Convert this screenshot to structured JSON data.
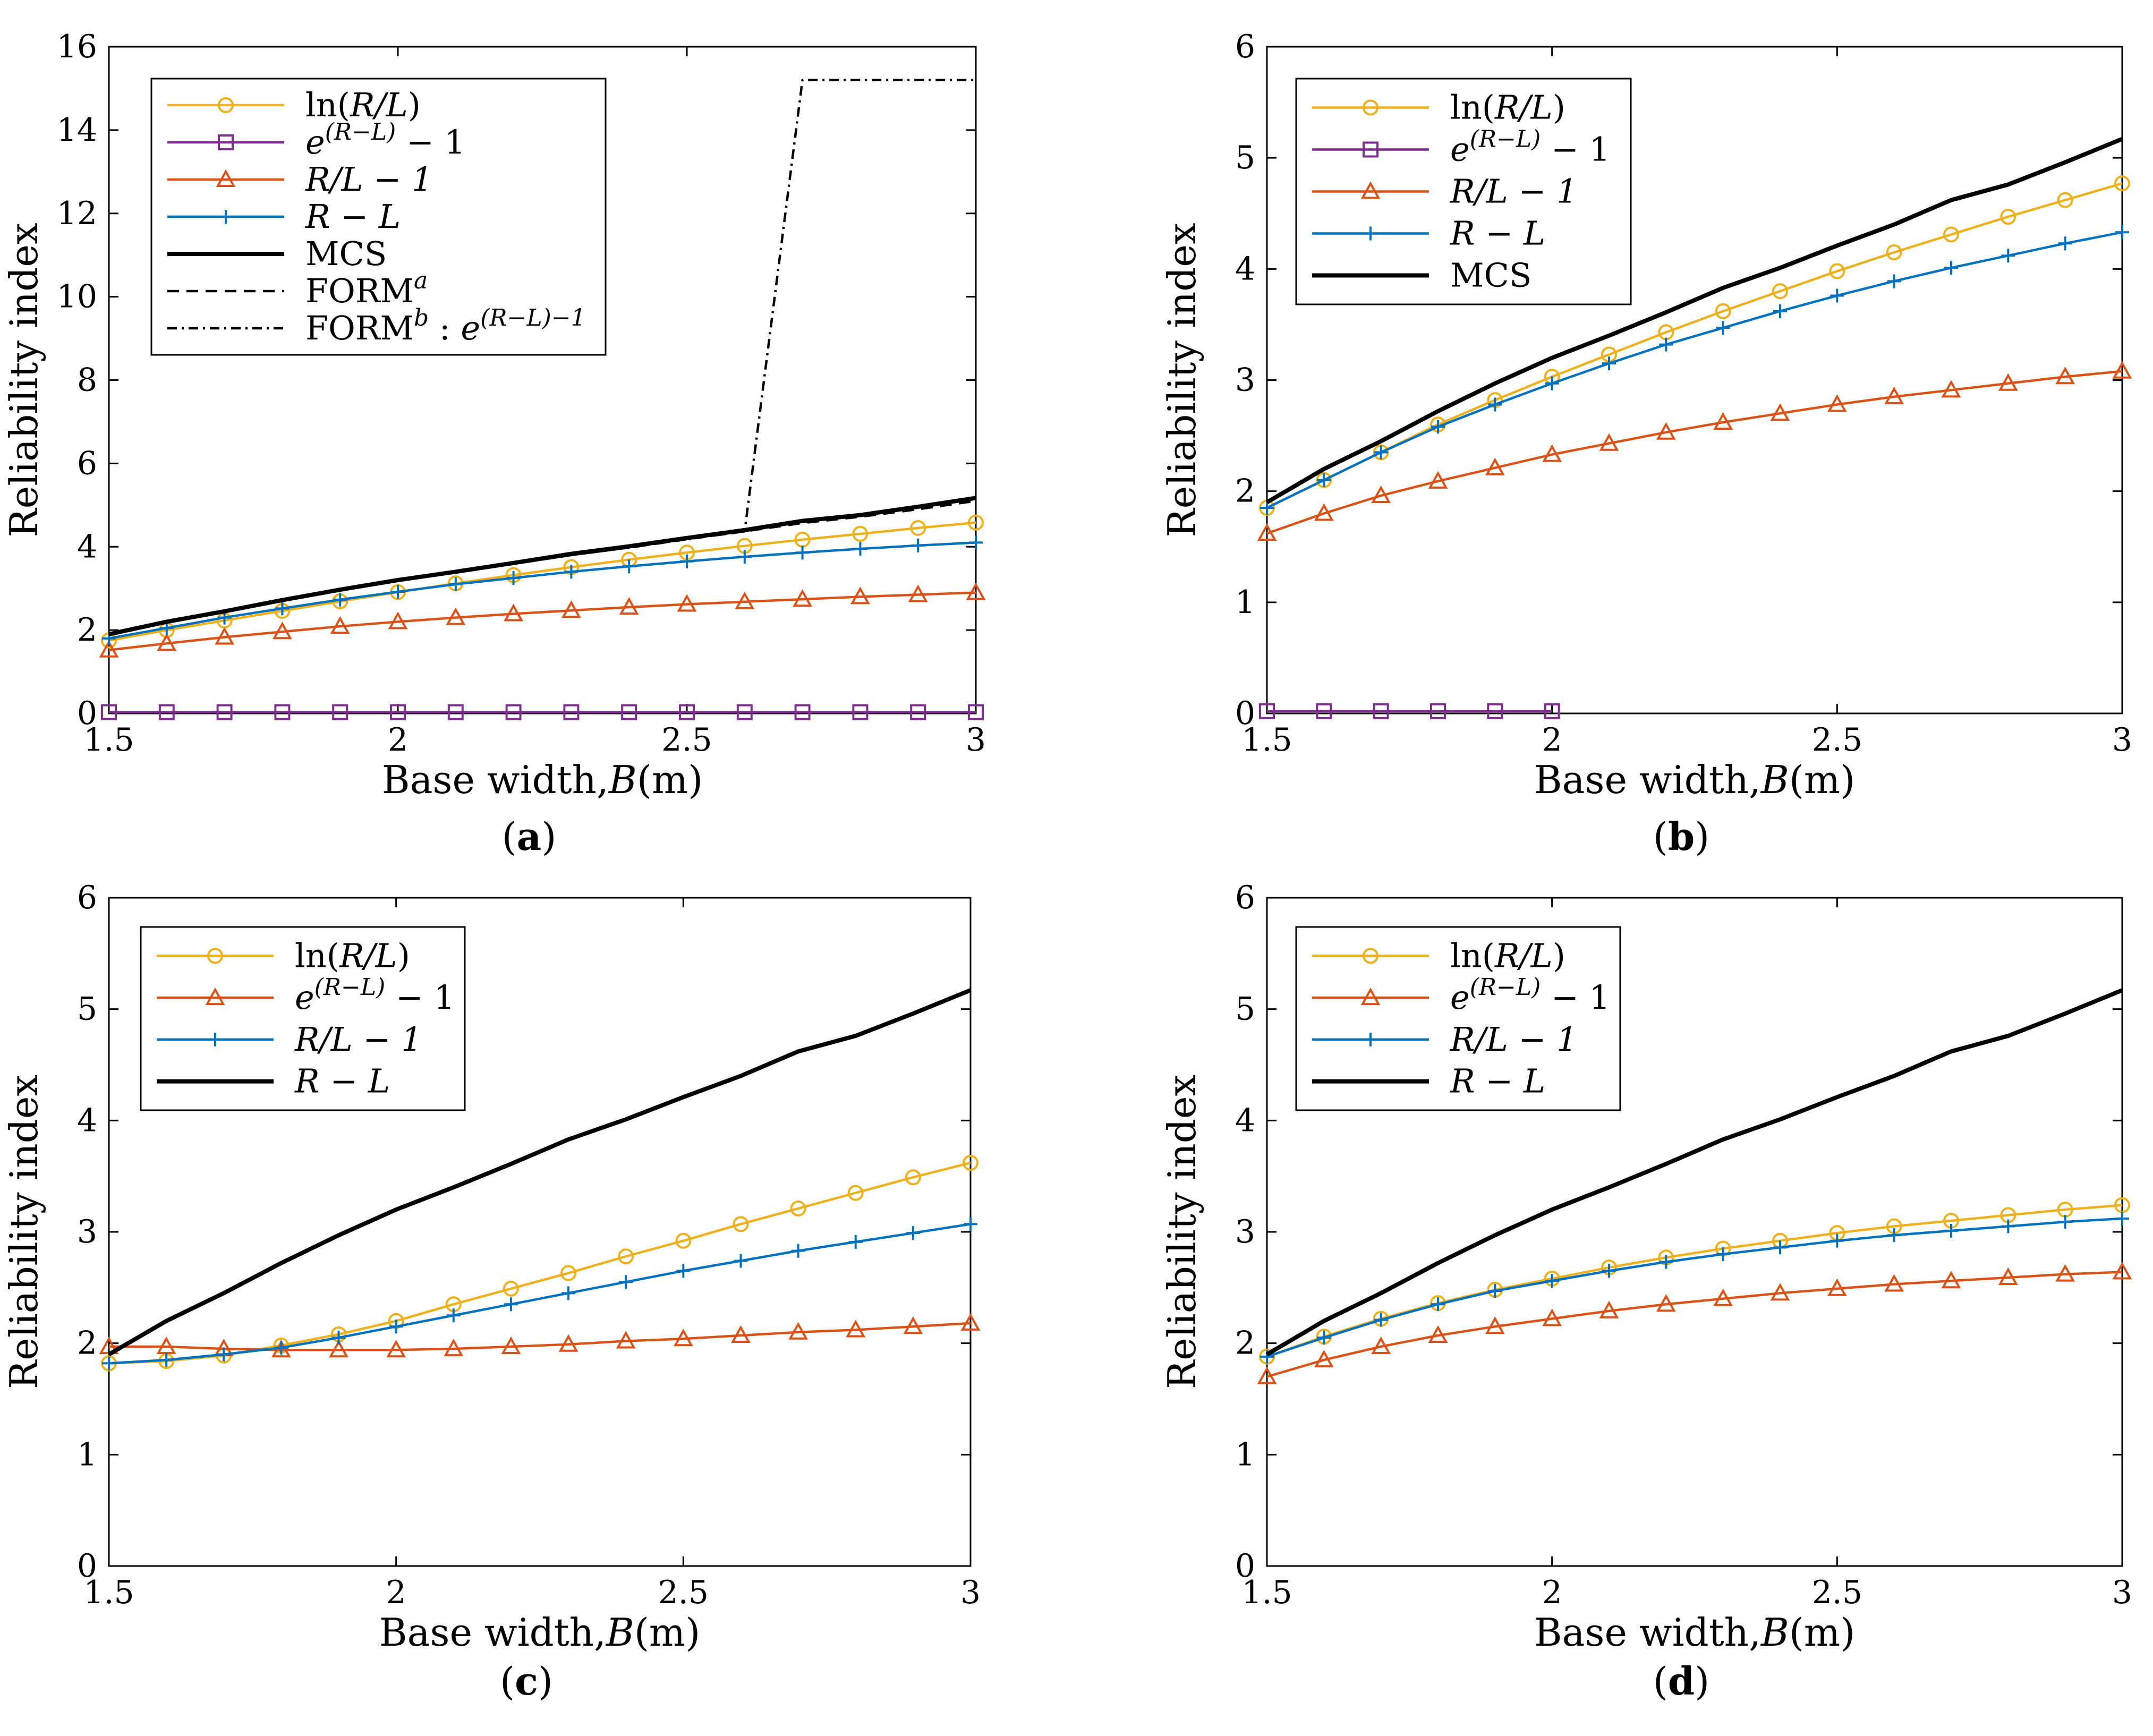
{
  "chart_data": [
    {
      "panel": "a",
      "type": "line",
      "xlabel": "Base width,B(m)",
      "ylabel": "Reliability index",
      "xlim": [
        1.5,
        3
      ],
      "ylim": [
        0,
        16
      ],
      "xticks": [
        1.5,
        2,
        2.5,
        3
      ],
      "xtick_labels": [
        "1.5",
        "2",
        "2.5",
        "3"
      ],
      "yticks": [
        0,
        2,
        4,
        6,
        8,
        10,
        12,
        14,
        16
      ],
      "ytick_labels": [
        "0",
        "2",
        "4",
        "6",
        "8",
        "10",
        "12",
        "14",
        "16"
      ],
      "grid": false,
      "legend_placement": "top-left",
      "x": [
        1.5,
        1.6,
        1.7,
        1.8,
        1.9,
        2.0,
        2.1,
        2.2,
        2.3,
        2.4,
        2.5,
        2.6,
        2.7,
        2.8,
        2.9,
        3.0
      ],
      "series": [
        {
          "name": "ln(R/L)",
          "color": "#EDB120",
          "marker": "circle",
          "dash": "solid",
          "values": [
            1.75,
            2.0,
            2.23,
            2.46,
            2.69,
            2.91,
            3.12,
            3.32,
            3.51,
            3.69,
            3.86,
            4.02,
            4.17,
            4.31,
            4.45,
            4.58
          ]
        },
        {
          "name": "e^(R−L) − 1",
          "color": "#7E2F8E",
          "marker": "square",
          "dash": "solid",
          "values": [
            0.03,
            0.03,
            0.03,
            0.03,
            0.03,
            0.03,
            0.03,
            0.03,
            0.03,
            0.03,
            0.03,
            0.03,
            0.03,
            0.03,
            0.03,
            0.03
          ]
        },
        {
          "name": "R/L − 1",
          "color": "#D95319",
          "marker": "triangle",
          "dash": "solid",
          "values": [
            1.52,
            1.68,
            1.83,
            1.96,
            2.09,
            2.2,
            2.3,
            2.39,
            2.47,
            2.55,
            2.62,
            2.68,
            2.74,
            2.8,
            2.85,
            2.9
          ]
        },
        {
          "name": "R − L",
          "color": "#0072BD",
          "marker": "plus",
          "dash": "solid",
          "values": [
            1.8,
            2.05,
            2.3,
            2.52,
            2.73,
            2.92,
            3.1,
            3.25,
            3.4,
            3.53,
            3.65,
            3.76,
            3.86,
            3.95,
            4.03,
            4.1
          ]
        },
        {
          "name": "MCS",
          "color": "#000000",
          "marker": "none",
          "dash": "solid",
          "width": "thick",
          "values": [
            1.9,
            2.2,
            2.45,
            2.72,
            2.97,
            3.2,
            3.4,
            3.61,
            3.83,
            4.01,
            4.21,
            4.4,
            4.62,
            4.76,
            4.96,
            5.17
          ]
        },
        {
          "name": "FORM^a",
          "color": "#000000",
          "marker": "none",
          "dash": "dashed",
          "values": [
            1.88,
            2.18,
            2.43,
            2.7,
            2.95,
            3.18,
            3.38,
            3.59,
            3.8,
            3.98,
            4.18,
            4.37,
            4.57,
            4.72,
            4.9,
            5.1
          ]
        },
        {
          "name": "FORM^b : e^(R−L)−1",
          "color": "#000000",
          "marker": "none",
          "dash": "dashdot",
          "x": [
            1.5,
            1.6,
            1.7,
            1.8,
            1.9,
            2.0,
            2.1,
            2.2,
            2.3,
            2.4,
            2.5,
            2.6,
            2.7,
            2.8,
            2.9,
            3.0
          ],
          "values": [
            1.88,
            2.18,
            2.43,
            2.7,
            2.95,
            3.18,
            3.38,
            3.59,
            3.8,
            3.98,
            4.18,
            4.37,
            15.2,
            15.2,
            15.2,
            15.2
          ]
        }
      ],
      "caption_letter": "a"
    },
    {
      "panel": "b",
      "type": "line",
      "xlabel": "Base width,B(m)",
      "ylabel": "Reliability index",
      "xlim": [
        1.5,
        3
      ],
      "ylim": [
        0,
        6
      ],
      "xticks": [
        1.5,
        2,
        2.5,
        3
      ],
      "xtick_labels": [
        "1.5",
        "2",
        "2.5",
        "3"
      ],
      "yticks": [
        0,
        1,
        2,
        3,
        4,
        5,
        6
      ],
      "ytick_labels": [
        "0",
        "1",
        "2",
        "3",
        "4",
        "5",
        "6"
      ],
      "grid": false,
      "legend_placement": "top-left",
      "x": [
        1.5,
        1.6,
        1.7,
        1.8,
        1.9,
        2.0,
        2.1,
        2.2,
        2.3,
        2.4,
        2.5,
        2.6,
        2.7,
        2.8,
        2.9,
        3.0
      ],
      "series": [
        {
          "name": "ln(R/L)",
          "color": "#EDB120",
          "marker": "circle",
          "dash": "solid",
          "values": [
            1.85,
            2.1,
            2.35,
            2.6,
            2.82,
            3.03,
            3.23,
            3.43,
            3.62,
            3.8,
            3.98,
            4.15,
            4.31,
            4.47,
            4.62,
            4.77
          ]
        },
        {
          "name": "e^(R−L) − 1",
          "color": "#7E2F8E",
          "marker": "square",
          "dash": "solid",
          "x": [
            1.5,
            1.6,
            1.7,
            1.8,
            1.9,
            2.0
          ],
          "values": [
            0.02,
            0.02,
            0.02,
            0.02,
            0.02,
            0.02
          ]
        },
        {
          "name": "R/L − 1",
          "color": "#D95319",
          "marker": "triangle",
          "dash": "solid",
          "values": [
            1.62,
            1.8,
            1.96,
            2.09,
            2.21,
            2.33,
            2.43,
            2.53,
            2.62,
            2.7,
            2.78,
            2.85,
            2.91,
            2.97,
            3.03,
            3.08
          ]
        },
        {
          "name": "R − L",
          "color": "#0072BD",
          "marker": "plus",
          "dash": "solid",
          "values": [
            1.85,
            2.1,
            2.35,
            2.58,
            2.78,
            2.97,
            3.15,
            3.32,
            3.47,
            3.62,
            3.76,
            3.89,
            4.01,
            4.12,
            4.23,
            4.33
          ]
        },
        {
          "name": "MCS",
          "color": "#000000",
          "marker": "none",
          "dash": "solid",
          "width": "thick",
          "values": [
            1.9,
            2.2,
            2.45,
            2.72,
            2.97,
            3.2,
            3.4,
            3.61,
            3.83,
            4.01,
            4.21,
            4.4,
            4.62,
            4.76,
            4.96,
            5.17
          ]
        }
      ],
      "caption_letter": "b"
    },
    {
      "panel": "c",
      "type": "line",
      "xlabel": "Base width,B(m)",
      "ylabel": "Reliability index",
      "xlim": [
        1.5,
        3
      ],
      "ylim": [
        0,
        6
      ],
      "xticks": [
        1.5,
        2,
        2.5,
        3
      ],
      "xtick_labels": [
        "1.5",
        "2",
        "2.5",
        "3"
      ],
      "yticks": [
        0,
        1,
        2,
        3,
        4,
        5,
        6
      ],
      "ytick_labels": [
        "0",
        "1",
        "2",
        "3",
        "4",
        "5",
        "6"
      ],
      "grid": false,
      "legend_placement": "top-left",
      "x": [
        1.5,
        1.6,
        1.7,
        1.8,
        1.9,
        2.0,
        2.1,
        2.2,
        2.3,
        2.4,
        2.5,
        2.6,
        2.7,
        2.8,
        2.9,
        3.0
      ],
      "series": [
        {
          "name": "ln(R/L)",
          "color": "#EDB120",
          "marker": "circle",
          "dash": "solid",
          "values": [
            1.82,
            1.84,
            1.89,
            1.98,
            2.08,
            2.2,
            2.35,
            2.49,
            2.63,
            2.78,
            2.92,
            3.07,
            3.21,
            3.35,
            3.49,
            3.62
          ]
        },
        {
          "name": "e^(R−L) − 1",
          "color": "#D95319",
          "marker": "triangle",
          "dash": "solid",
          "values": [
            1.97,
            1.97,
            1.95,
            1.94,
            1.94,
            1.94,
            1.95,
            1.97,
            1.99,
            2.02,
            2.04,
            2.07,
            2.1,
            2.12,
            2.15,
            2.18
          ]
        },
        {
          "name": "R/L − 1",
          "color": "#0072BD",
          "marker": "plus",
          "dash": "solid",
          "values": [
            1.82,
            1.85,
            1.9,
            1.96,
            2.05,
            2.15,
            2.25,
            2.35,
            2.45,
            2.55,
            2.65,
            2.74,
            2.83,
            2.91,
            2.99,
            3.07
          ]
        },
        {
          "name": "R − L",
          "color": "#000000",
          "marker": "none",
          "dash": "solid",
          "width": "thick",
          "values": [
            1.9,
            2.2,
            2.45,
            2.72,
            2.97,
            3.2,
            3.4,
            3.61,
            3.83,
            4.01,
            4.21,
            4.4,
            4.62,
            4.76,
            4.96,
            5.17
          ]
        }
      ],
      "caption_letter": "c"
    },
    {
      "panel": "d",
      "type": "line",
      "xlabel": "Base width,B(m)",
      "ylabel": "Reliability index",
      "xlim": [
        1.5,
        3
      ],
      "ylim": [
        0,
        6
      ],
      "xticks": [
        1.5,
        2,
        2.5,
        3
      ],
      "xtick_labels": [
        "1.5",
        "2",
        "2.5",
        "3"
      ],
      "yticks": [
        0,
        1,
        2,
        3,
        4,
        5,
        6
      ],
      "ytick_labels": [
        "0",
        "1",
        "2",
        "3",
        "4",
        "5",
        "6"
      ],
      "grid": false,
      "legend_placement": "top-left",
      "x": [
        1.5,
        1.6,
        1.7,
        1.8,
        1.9,
        2.0,
        2.1,
        2.2,
        2.3,
        2.4,
        2.5,
        2.6,
        2.7,
        2.8,
        2.9,
        3.0
      ],
      "series": [
        {
          "name": "ln(R/L)",
          "color": "#EDB120",
          "marker": "circle",
          "dash": "solid",
          "values": [
            1.88,
            2.06,
            2.22,
            2.36,
            2.48,
            2.58,
            2.68,
            2.77,
            2.85,
            2.92,
            2.99,
            3.05,
            3.1,
            3.15,
            3.2,
            3.24
          ]
        },
        {
          "name": "e^(R−L) − 1",
          "color": "#D95319",
          "marker": "triangle",
          "dash": "solid",
          "values": [
            1.7,
            1.85,
            1.97,
            2.07,
            2.15,
            2.22,
            2.29,
            2.35,
            2.4,
            2.45,
            2.49,
            2.53,
            2.56,
            2.59,
            2.62,
            2.64
          ]
        },
        {
          "name": "R/L − 1",
          "color": "#0072BD",
          "marker": "plus",
          "dash": "solid",
          "values": [
            1.88,
            2.05,
            2.21,
            2.35,
            2.47,
            2.56,
            2.65,
            2.73,
            2.8,
            2.86,
            2.92,
            2.97,
            3.01,
            3.05,
            3.09,
            3.12
          ]
        },
        {
          "name": "R − L",
          "color": "#000000",
          "marker": "none",
          "dash": "solid",
          "width": "thick",
          "values": [
            1.9,
            2.2,
            2.45,
            2.72,
            2.97,
            3.2,
            3.4,
            3.61,
            3.83,
            4.01,
            4.21,
            4.4,
            4.62,
            4.76,
            4.96,
            5.17
          ]
        }
      ],
      "caption_letter": "d"
    }
  ]
}
